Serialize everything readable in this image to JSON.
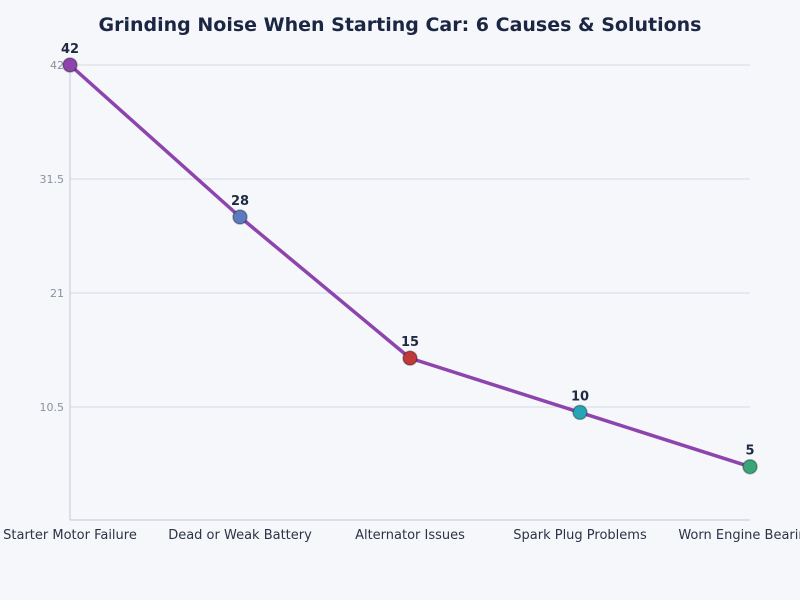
{
  "chart_data": {
    "type": "line",
    "title": "Grinding Noise When Starting Car: 6 Causes & Solutions",
    "xlabel": "",
    "ylabel": "",
    "categories": [
      "Starter Motor Failure",
      "Dead or Weak Battery",
      "Alternator Issues",
      "Spark Plug Problems",
      "Worn Engine Bearings"
    ],
    "values": [
      42,
      28,
      15,
      10,
      5
    ],
    "data_labels": [
      "42",
      "28",
      "15",
      "10",
      "5"
    ],
    "ylim": [
      0,
      42
    ],
    "yticks": [
      10.5,
      21,
      31.5,
      42
    ],
    "ytick_labels": [
      "10.5",
      "21",
      "31.5",
      "42"
    ],
    "grid": true,
    "line_color": "#8e44ad",
    "point_colors": [
      "#8e44ad",
      "#5b7bbf",
      "#c0393b",
      "#25a5b5",
      "#3ba57a"
    ]
  }
}
